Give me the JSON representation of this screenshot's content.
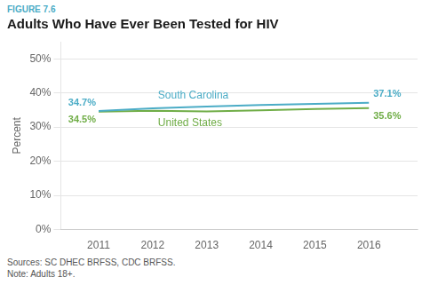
{
  "chart_data": {
    "type": "line",
    "subtitle": "FIGURE 7.6",
    "title": "Adults Who Have Ever Been Tested for HIV",
    "ylabel": "Percent",
    "x": [
      2011,
      2012,
      2013,
      2014,
      2015,
      2016
    ],
    "xlim": [
      2010.3,
      2016.9
    ],
    "xticks": [
      2011,
      2012,
      2013,
      2014,
      2015,
      2016
    ],
    "ylim": [
      0,
      55
    ],
    "yticks": [
      {
        "value": 0,
        "label": "0%"
      },
      {
        "value": 10,
        "label": "10%"
      },
      {
        "value": 20,
        "label": "20%"
      },
      {
        "value": 30,
        "label": "30%"
      },
      {
        "value": 40,
        "label": "40%"
      },
      {
        "value": 50,
        "label": "50%"
      }
    ],
    "grid": true,
    "series": [
      {
        "name": "South Carolina",
        "color": "#4BACC6",
        "values": [
          34.7,
          35.5,
          36.0,
          36.5,
          36.8,
          37.1
        ],
        "value_labels": [
          "34.7%",
          null,
          null,
          null,
          null,
          "37.1%"
        ]
      },
      {
        "name": "United States",
        "color": "#70AD47",
        "values": [
          34.5,
          34.8,
          34.6,
          34.9,
          35.3,
          35.6
        ],
        "value_labels": [
          "34.5%",
          null,
          null,
          null,
          null,
          "35.6%"
        ]
      }
    ],
    "annotations": [
      "Sources: SC DHEC BRFSS, CDC BRFSS.",
      "Note: Adults 18+."
    ]
  }
}
